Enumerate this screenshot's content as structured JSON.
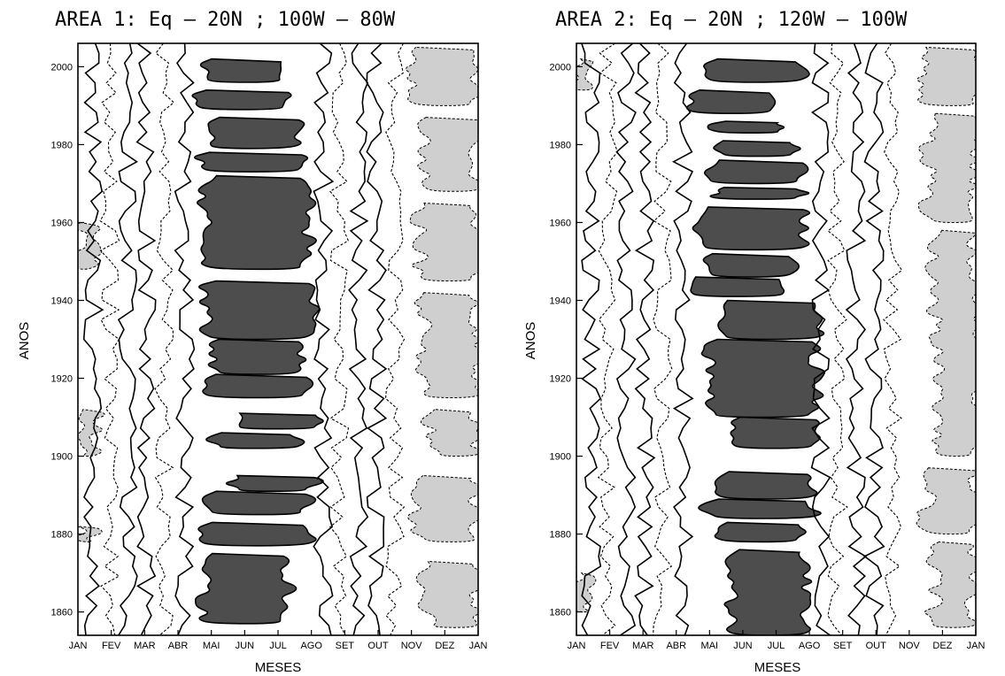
{
  "chart_data": [
    {
      "type": "heatmap",
      "title": "AREA 1: Eq – 20N ; 100W – 80W",
      "xlabel": "MESES",
      "ylabel": "ANOS",
      "x_categories": [
        "JAN",
        "FEV",
        "MAR",
        "ABR",
        "MAI",
        "JUN",
        "JUL",
        "AGO",
        "SET",
        "OUT",
        "NOV",
        "DEZ",
        "JAN"
      ],
      "y_ticks": [
        1860,
        1880,
        1900,
        1920,
        1940,
        1960,
        1980,
        2000
      ],
      "ylim": [
        1854,
        2006
      ],
      "shading": {
        "high": "#4d4d4d",
        "low": "#cfcfcf",
        "neutral": "#ffffff"
      },
      "high_regions": [
        {
          "month_start": 3.8,
          "month_end": 6.3,
          "year_start": 1996,
          "year_end": 2002
        },
        {
          "month_start": 3.5,
          "month_end": 6.4,
          "year_start": 1989,
          "year_end": 1994
        },
        {
          "month_start": 3.9,
          "month_end": 6.6,
          "year_start": 1979,
          "year_end": 1987
        },
        {
          "month_start": 3.6,
          "month_end": 6.8,
          "year_start": 1973,
          "year_end": 1978
        },
        {
          "month_start": 3.8,
          "month_end": 6.9,
          "year_start": 1948,
          "year_end": 1972
        },
        {
          "month_start": 3.8,
          "month_end": 7.0,
          "year_start": 1930,
          "year_end": 1945
        },
        {
          "month_start": 4.0,
          "month_end": 6.7,
          "year_start": 1921,
          "year_end": 1930
        },
        {
          "month_start": 3.8,
          "month_end": 7.0,
          "year_start": 1915,
          "year_end": 1921
        },
        {
          "month_start": 4.7,
          "month_end": 7.3,
          "year_start": 1907,
          "year_end": 1911
        },
        {
          "month_start": 4.0,
          "month_end": 6.6,
          "year_start": 1902,
          "year_end": 1906
        },
        {
          "month_start": 4.6,
          "month_end": 7.1,
          "year_start": 1891,
          "year_end": 1895
        },
        {
          "month_start": 3.8,
          "month_end": 6.9,
          "year_start": 1885,
          "year_end": 1891
        },
        {
          "month_start": 3.6,
          "month_end": 7.0,
          "year_start": 1877,
          "year_end": 1883
        },
        {
          "month_start": 3.8,
          "month_end": 6.3,
          "year_start": 1857,
          "year_end": 1875
        }
      ],
      "low_regions": [
        {
          "month_start": 10.0,
          "month_end": 12.0,
          "year_start": 1990,
          "year_end": 2005
        },
        {
          "month_start": 10.4,
          "month_end": 12.0,
          "year_start": 1968,
          "year_end": 1987
        },
        {
          "month_start": 10.2,
          "month_end": 12.0,
          "year_start": 1945,
          "year_end": 1965
        },
        {
          "month_start": 10.3,
          "month_end": 12.0,
          "year_start": 1915,
          "year_end": 1942
        },
        {
          "month_start": 10.6,
          "month_end": 12.0,
          "year_start": 1900,
          "year_end": 1912
        },
        {
          "month_start": 10.2,
          "month_end": 12.0,
          "year_start": 1878,
          "year_end": 1895
        },
        {
          "month_start": 10.4,
          "month_end": 12.0,
          "year_start": 1856,
          "year_end": 1873
        },
        {
          "month_start": 0.0,
          "month_end": 0.4,
          "year_start": 1948,
          "year_end": 1960
        },
        {
          "month_start": 0.0,
          "month_end": 0.6,
          "year_start": 1900,
          "year_end": 1912
        },
        {
          "month_start": 0.0,
          "month_end": 0.5,
          "year_start": 1878,
          "year_end": 1882
        }
      ]
    },
    {
      "type": "heatmap",
      "title": "AREA 2: Eq – 20N ; 120W – 100W",
      "xlabel": "MESES",
      "ylabel": "ANOS",
      "x_categories": [
        "JAN",
        "FEV",
        "MAR",
        "ABR",
        "MAI",
        "JUN",
        "JUL",
        "AGO",
        "SET",
        "OUT",
        "NOV",
        "DEZ",
        "JAN"
      ],
      "y_ticks": [
        1860,
        1880,
        1900,
        1920,
        1940,
        1960,
        1980,
        2000
      ],
      "ylim": [
        1854,
        2006
      ],
      "shading": {
        "high": "#4d4d4d",
        "low": "#cfcfcf",
        "neutral": "#ffffff"
      },
      "high_regions": [
        {
          "month_start": 4.0,
          "month_end": 6.8,
          "year_start": 1996,
          "year_end": 2002
        },
        {
          "month_start": 3.4,
          "month_end": 6.0,
          "year_start": 1988,
          "year_end": 1994
        },
        {
          "month_start": 4.2,
          "month_end": 6.2,
          "year_start": 1983,
          "year_end": 1986
        },
        {
          "month_start": 4.2,
          "month_end": 6.6,
          "year_start": 1977,
          "year_end": 1981
        },
        {
          "month_start": 3.9,
          "month_end": 6.9,
          "year_start": 1970,
          "year_end": 1976
        },
        {
          "month_start": 4.1,
          "month_end": 6.8,
          "year_start": 1966,
          "year_end": 1969
        },
        {
          "month_start": 3.6,
          "month_end": 6.9,
          "year_start": 1953,
          "year_end": 1964
        },
        {
          "month_start": 3.8,
          "month_end": 6.6,
          "year_start": 1946,
          "year_end": 1952
        },
        {
          "month_start": 3.4,
          "month_end": 6.3,
          "year_start": 1941,
          "year_end": 1946
        },
        {
          "month_start": 4.3,
          "month_end": 7.3,
          "year_start": 1930,
          "year_end": 1940
        },
        {
          "month_start": 4.0,
          "month_end": 7.2,
          "year_start": 1910,
          "year_end": 1930
        },
        {
          "month_start": 4.6,
          "month_end": 7.3,
          "year_start": 1902,
          "year_end": 1910
        },
        {
          "month_start": 4.3,
          "month_end": 7.1,
          "year_start": 1889,
          "year_end": 1896
        },
        {
          "month_start": 3.9,
          "month_end": 7.2,
          "year_start": 1884,
          "year_end": 1889
        },
        {
          "month_start": 4.2,
          "month_end": 6.8,
          "year_start": 1878,
          "year_end": 1883
        },
        {
          "month_start": 4.6,
          "month_end": 6.9,
          "year_start": 1854,
          "year_end": 1876
        }
      ],
      "low_regions": [
        {
          "month_start": 10.4,
          "month_end": 12.0,
          "year_start": 1990,
          "year_end": 2005
        },
        {
          "month_start": 10.6,
          "month_end": 12.0,
          "year_start": 1960,
          "year_end": 1988
        },
        {
          "month_start": 10.8,
          "month_end": 12.0,
          "year_start": 1900,
          "year_end": 1958
        },
        {
          "month_start": 10.5,
          "month_end": 12.0,
          "year_start": 1880,
          "year_end": 1897
        },
        {
          "month_start": 10.7,
          "month_end": 12.0,
          "year_start": 1856,
          "year_end": 1878
        },
        {
          "month_start": 0.0,
          "month_end": 0.5,
          "year_start": 1994,
          "year_end": 2002
        },
        {
          "month_start": 0.0,
          "month_end": 0.4,
          "year_start": 1860,
          "year_end": 1870
        }
      ]
    }
  ]
}
